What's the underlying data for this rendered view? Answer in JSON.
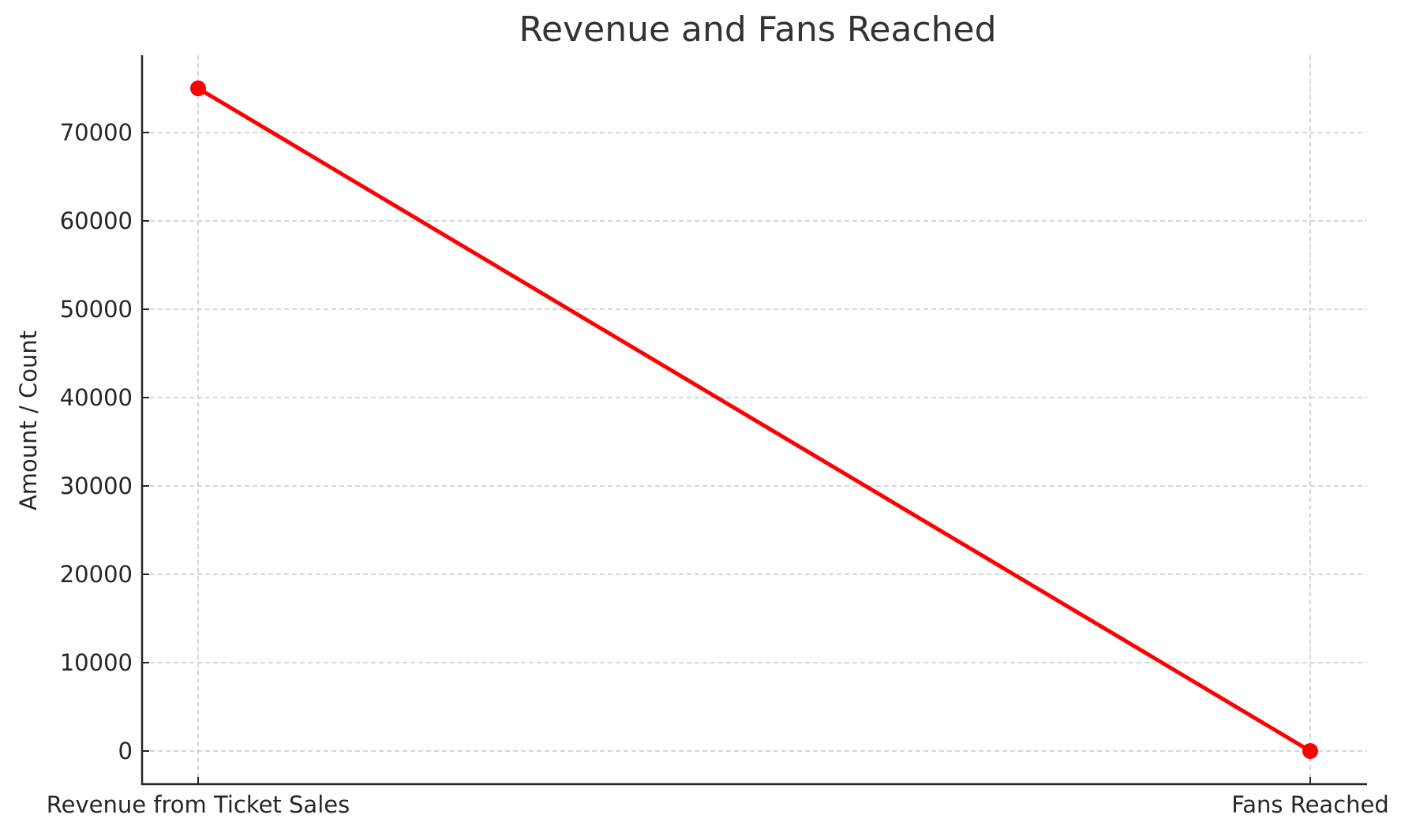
{
  "chart_data": {
    "type": "line",
    "title": "Revenue and Fans Reached",
    "xlabel": "",
    "ylabel": "Amount / Count",
    "categories": [
      "Revenue from Ticket Sales",
      "Fans Reached"
    ],
    "series": [
      {
        "name": "Amount / Count",
        "values": [
          75000,
          0
        ],
        "color": "#ff0000",
        "marker": "circle"
      }
    ],
    "yticks": [
      0,
      10000,
      20000,
      30000,
      40000,
      50000,
      60000,
      70000
    ],
    "ytick_labels": [
      "0",
      "10000",
      "20000",
      "30000",
      "40000",
      "50000",
      "60000",
      "70000"
    ],
    "ylim": [
      -3750,
      78750
    ],
    "grid": true,
    "grid_style": "dashed",
    "legend": null
  },
  "colors": {
    "line": "#ff0000",
    "axis": "#262626",
    "grid": "#c8c8c8",
    "title": "#333333"
  }
}
